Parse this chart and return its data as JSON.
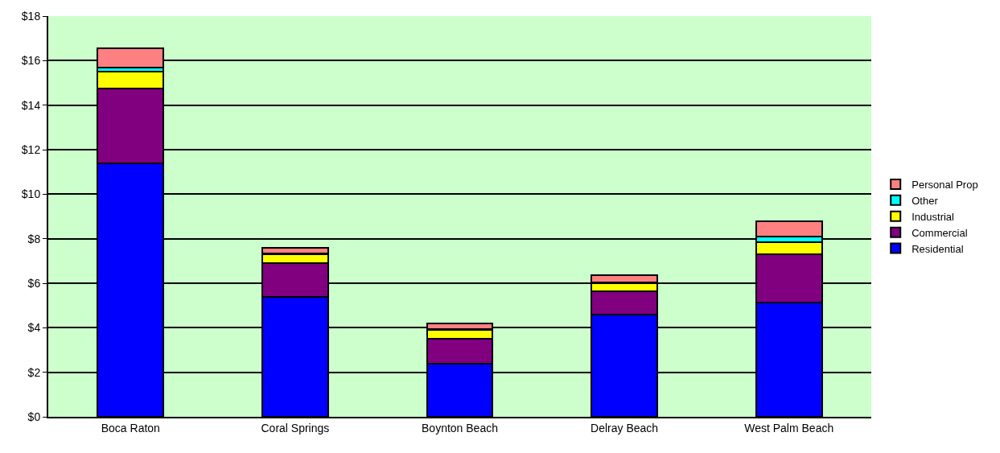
{
  "chart_data": {
    "type": "bar",
    "stacked": true,
    "categories": [
      "Boca Raton",
      "Coral Springs",
      "Boynton Beach",
      "Delray Beach",
      "West Palm Beach"
    ],
    "series": [
      {
        "name": "Residential",
        "color": "#0000ff",
        "values": [
          11.4,
          5.4,
          2.4,
          4.6,
          5.15
        ]
      },
      {
        "name": "Commercial",
        "color": "#800080",
        "values": [
          3.35,
          1.5,
          1.1,
          1.05,
          2.15
        ]
      },
      {
        "name": "Industrial",
        "color": "#ffff00",
        "values": [
          0.75,
          0.4,
          0.4,
          0.35,
          0.55
        ]
      },
      {
        "name": "Other",
        "color": "#00ffff",
        "values": [
          0.2,
          0.05,
          0.05,
          0.05,
          0.25
        ]
      },
      {
        "name": "Personal Prop",
        "color": "#ff8080",
        "values": [
          0.85,
          0.25,
          0.25,
          0.3,
          0.7
        ]
      }
    ],
    "ylim": [
      0,
      18
    ],
    "yticks": [
      {
        "value": 0,
        "label": "$0"
      },
      {
        "value": 2,
        "label": "$2"
      },
      {
        "value": 4,
        "label": "$4"
      },
      {
        "value": 6,
        "label": "$6"
      },
      {
        "value": 8,
        "label": "$8"
      },
      {
        "value": 10,
        "label": "$10"
      },
      {
        "value": 12,
        "label": "$12"
      },
      {
        "value": 14,
        "label": "$14"
      },
      {
        "value": 16,
        "label": "$16"
      },
      {
        "value": 18,
        "label": "$18"
      }
    ],
    "grid": "y",
    "legend": "right"
  }
}
